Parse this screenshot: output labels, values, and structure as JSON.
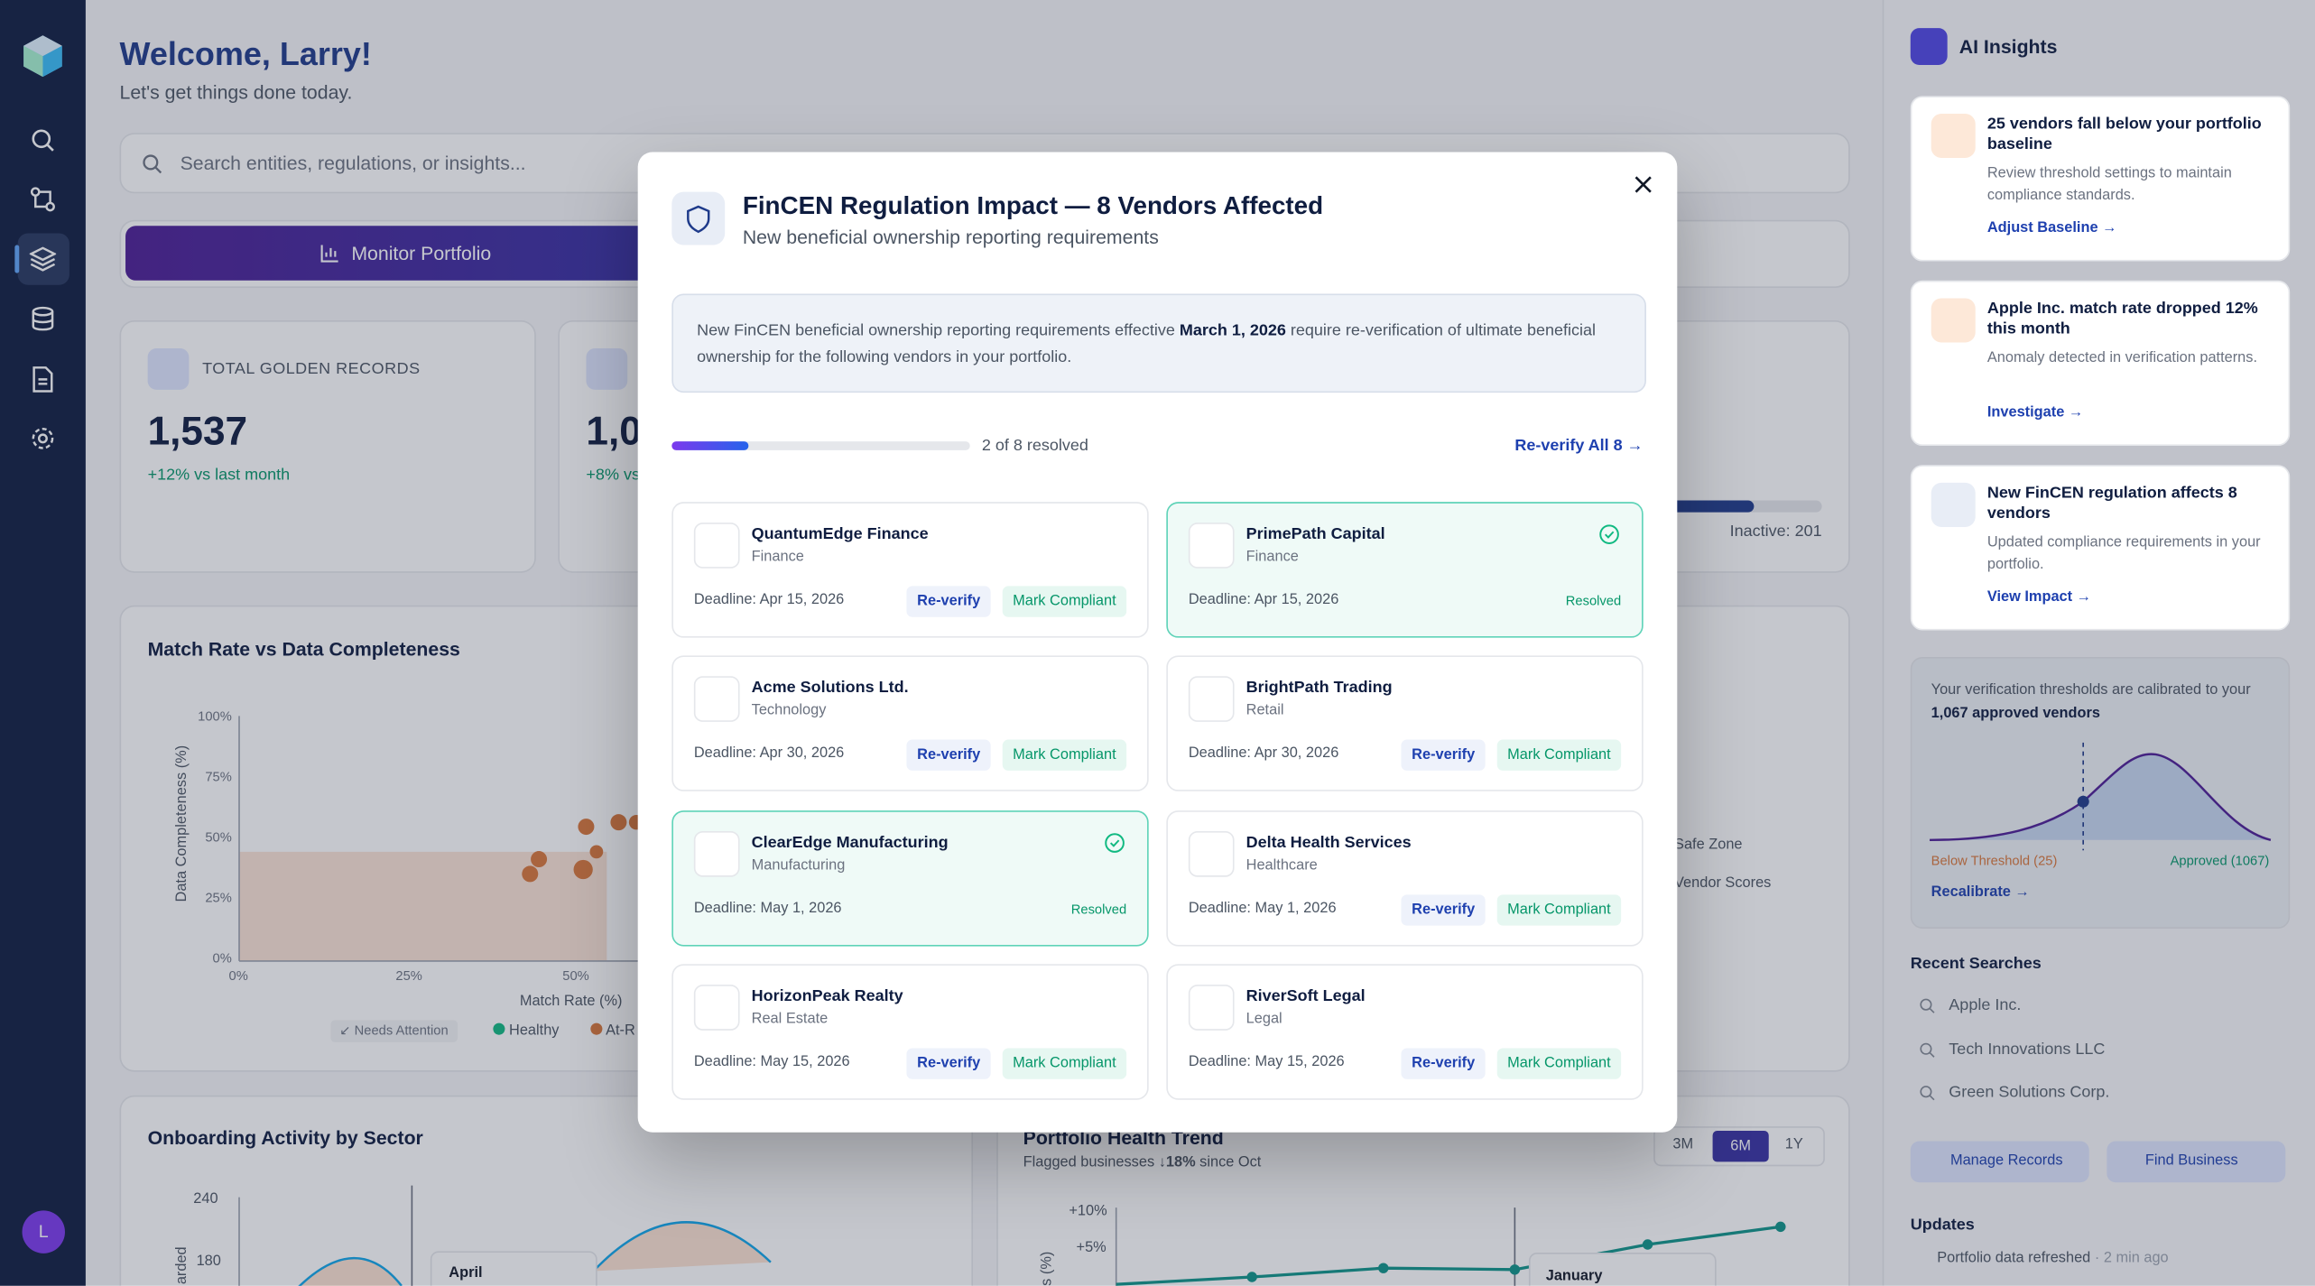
{
  "sidebar": {
    "avatar": "L"
  },
  "header": {
    "title": "Welcome, Larry!",
    "subtitle": "Let's get things done today."
  },
  "search": {
    "placeholder": "Search entities, regulations, or insights..."
  },
  "tabs": [
    "Monitor Portfolio"
  ],
  "stats": [
    {
      "label": "TOTAL GOLDEN RECORDS",
      "value": "1,537",
      "change": "+12% vs last month"
    },
    {
      "value": "1,0",
      "change": "+8% vs"
    }
  ],
  "inactive": "Inactive: 201",
  "match_chart": {
    "title": "Match Rate vs Data Completeness",
    "y_label": "Data Completeness (%)",
    "x_label": "Match Rate (%)",
    "yticks": [
      "100%",
      "75%",
      "50%",
      "25%",
      "0%"
    ],
    "xticks": [
      "0%",
      "25%",
      "50%"
    ],
    "legend": [
      "Needs Attention",
      "Healthy",
      "At-R"
    ]
  },
  "side_legend": [
    "Safe Zone",
    "Vendor Scores"
  ],
  "onboarding": {
    "title": "Onboarding Activity by Sector",
    "y_label": "arded",
    "yticks": [
      "240",
      "180"
    ],
    "tooltip": "April"
  },
  "health": {
    "title": "Portfolio Health Trend",
    "subtitle": [
      "Flagged businesses",
      "↓18%",
      "since Oct"
    ],
    "ranges": [
      "3M",
      "6M",
      "1Y"
    ],
    "y_label": "s (%)",
    "yticks": [
      "+10%",
      "+5%"
    ],
    "tooltip": "January"
  },
  "modal": {
    "title": "FinCEN Regulation Impact — 8 Vendors Affected",
    "subtitle": "New beneficial ownership reporting requirements",
    "notice": [
      "New FinCEN beneficial ownership reporting requirements effective ",
      "March 1, 2026",
      " require re-verification of ultimate beneficial ownership for the following vendors in your portfolio."
    ],
    "progress": "2 of 8 resolved",
    "action": "Re-verify All 8",
    "vendors": [
      {
        "name": "QuantumEdge Finance",
        "sector": "Finance",
        "deadline": "Deadline: Apr 15, 2026",
        "actions": [
          "Re-verify",
          "Mark Compliant"
        ]
      },
      {
        "name": "PrimePath Capital",
        "sector": "Finance",
        "deadline": "Deadline: Apr 15, 2026",
        "status": "Resolved"
      },
      {
        "name": "Acme Solutions Ltd.",
        "sector": "Technology",
        "deadline": "Deadline: Apr 30, 2026",
        "actions": [
          "Re-verify",
          "Mark Compliant"
        ]
      },
      {
        "name": "BrightPath Trading",
        "sector": "Retail",
        "deadline": "Deadline: Apr 30, 2026",
        "actions": [
          "Re-verify",
          "Mark Compliant"
        ]
      },
      {
        "name": "ClearEdge Manufacturing",
        "sector": "Manufacturing",
        "deadline": "Deadline: May 1, 2026",
        "status": "Resolved"
      },
      {
        "name": "Delta Health Services",
        "sector": "Healthcare",
        "deadline": "Deadline: May 1, 2026",
        "actions": [
          "Re-verify",
          "Mark Compliant"
        ]
      },
      {
        "name": "HorizonPeak Realty",
        "sector": "Real Estate",
        "deadline": "Deadline: May 15, 2026",
        "actions": [
          "Re-verify",
          "Mark Compliant"
        ]
      },
      {
        "name": "RiverSoft Legal",
        "sector": "Legal",
        "deadline": "Deadline: May 15, 2026",
        "actions": [
          "Re-verify",
          "Mark Compliant"
        ]
      }
    ]
  },
  "insights": {
    "title": "AI Insights",
    "items": [
      {
        "title": "25 vendors fall below your portfolio baseline",
        "body": "Review threshold settings to maintain compliance standards.",
        "link": "Adjust Baseline"
      },
      {
        "title": "Apple Inc. match rate dropped 12% this month",
        "body": "Anomaly detected in verification patterns.",
        "link": "Investigate"
      },
      {
        "title": "New FinCEN regulation affects 8 vendors",
        "body": "Updated compliance requirements in your portfolio.",
        "link": "View Impact"
      }
    ],
    "threshold": {
      "text": "Your verification thresholds are calibrated to your ",
      "bold": "1,067 approved vendors",
      "below": "Below Threshold (25)",
      "approved": "Approved (1067)",
      "link": "Recalibrate"
    },
    "recent_title": "Recent Searches",
    "recent": [
      "Apple Inc.",
      "Tech Innovations LLC",
      "Green Solutions Corp."
    ],
    "buttons": [
      "Manage Records",
      "Find Business"
    ],
    "updates_title": "Updates",
    "update": "Portfolio data refreshed",
    "update_time": "· 2 min ago"
  }
}
